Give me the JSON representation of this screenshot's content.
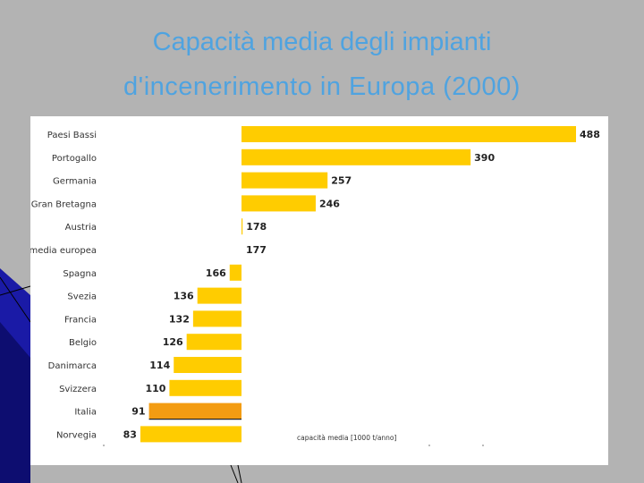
{
  "slide": {
    "title_line1": "Capacità media degli impianti",
    "title_line2": "d'incenerimento in Europa (2000)"
  },
  "colors": {
    "background": "#b3b3b3",
    "title": "#4fa3e0",
    "bar": "#ffcc00",
    "highlight_bar": "#f39c12",
    "accent": "#1a1aa6"
  },
  "chart_data": {
    "type": "bar",
    "orientation": "horizontal",
    "title": "Capacità media degli impianti d'incenerimento in Europa (2000)",
    "xlabel": "capacità media [1000 t/anno]",
    "ylabel": "",
    "reference_category": "media europea",
    "reference_value": 177,
    "highlight_category": "Italia",
    "categories": [
      "Paesi Bassi",
      "Portogallo",
      "Germania",
      "Gran Bretagna",
      "Austria",
      "media europea",
      "Spagna",
      "Svezia",
      "Francia",
      "Belgio",
      "Danimarca",
      "Svizzera",
      "Italia",
      "Norvegia"
    ],
    "values": [
      488,
      390,
      257,
      246,
      178,
      177,
      166,
      136,
      132,
      126,
      114,
      110,
      91,
      83
    ],
    "xlim": [
      0,
      488
    ]
  }
}
